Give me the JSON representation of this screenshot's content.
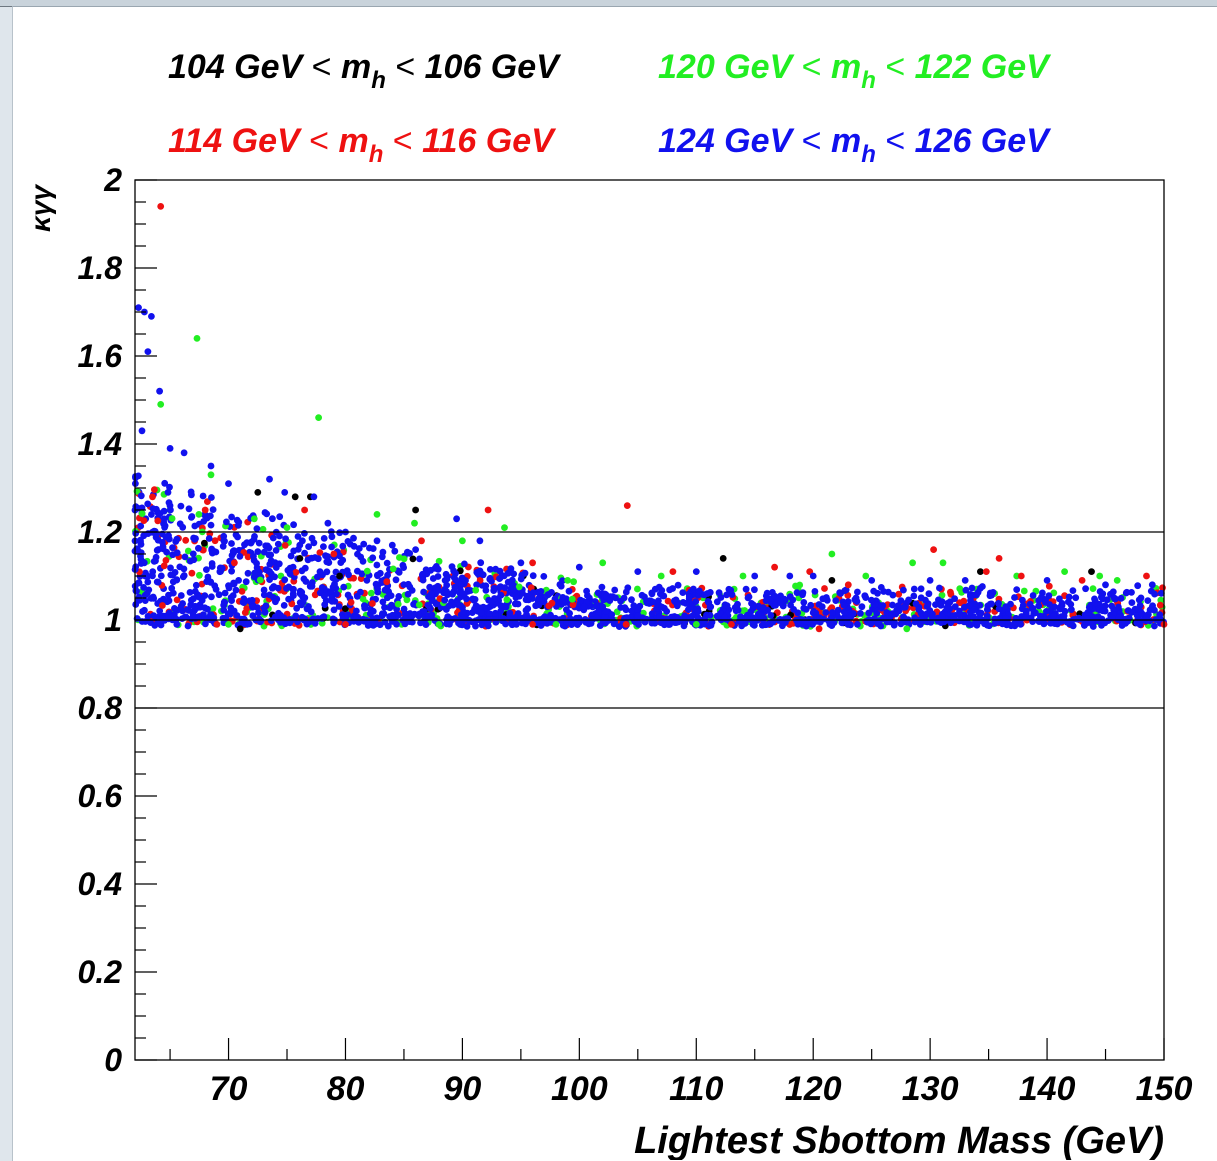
{
  "chart_data": {
    "type": "scatter",
    "xlabel": "Lightest Sbottom Mass (GeV)",
    "ylabel": "κγγ",
    "xlim": [
      62,
      150
    ],
    "ylim": [
      0,
      2
    ],
    "x_ticks": [
      "70",
      "80",
      "90",
      "100",
      "110",
      "120",
      "130",
      "140",
      "150"
    ],
    "y_ticks": [
      "0",
      "0.2",
      "0.4",
      "0.6",
      "0.8",
      "1",
      "1.2",
      "1.4",
      "1.6",
      "1.8",
      "2"
    ],
    "reference_lines": [
      0.8,
      1.0,
      1.2
    ],
    "grid": false,
    "legend_position": "top",
    "legend": [
      {
        "lo": "104 GeV",
        "hi": "106 GeV",
        "color": "#000000"
      },
      {
        "lo": "120 GeV",
        "hi": "122 GeV",
        "color": "#22ee22"
      },
      {
        "lo": "114 GeV",
        "hi": "116 GeV",
        "color": "#ee1111"
      },
      {
        "lo": "124 GeV",
        "hi": "126 GeV",
        "color": "#1111ee"
      }
    ],
    "legend_text": {
      "lt": "<",
      "m": "m",
      "h": "h"
    },
    "series": [
      {
        "name": "104 GeV < m_h < 106 GeV",
        "color": "#000000",
        "points": [
          [
            71,
            0.98
          ],
          [
            72.5,
            1.29
          ],
          [
            75.7,
            1.28
          ],
          [
            76.1,
            1.14
          ],
          [
            77,
            1.28
          ],
          [
            79.5,
            1.1
          ],
          [
            86,
            1.25
          ],
          [
            112.3,
            1.14
          ],
          [
            121.6,
            1.09
          ],
          [
            134.3,
            1.11
          ],
          [
            143.8,
            1.11
          ]
        ]
      },
      {
        "name": "120 GeV < m_h < 122 GeV",
        "color": "#22ee22",
        "points": [
          [
            64.2,
            1.49
          ],
          [
            67.3,
            1.64
          ],
          [
            68.5,
            1.33
          ],
          [
            72.2,
            1.23
          ],
          [
            75,
            1.21
          ],
          [
            77.7,
            1.46
          ],
          [
            82.7,
            1.24
          ],
          [
            85.9,
            1.22
          ],
          [
            90,
            1.18
          ],
          [
            93.6,
            1.21
          ],
          [
            99,
            1.09
          ],
          [
            102,
            1.13
          ],
          [
            107,
            1.1
          ],
          [
            114,
            1.1
          ],
          [
            121.6,
            1.15
          ],
          [
            124.5,
            1.1
          ],
          [
            128.5,
            1.13
          ],
          [
            131.1,
            1.13
          ],
          [
            137.4,
            1.1
          ],
          [
            141.5,
            1.11
          ],
          [
            144.5,
            1.1
          ],
          [
            146,
            1.09
          ],
          [
            98,
            0.99
          ],
          [
            110,
            0.99
          ],
          [
            128,
            0.98
          ],
          [
            70,
            0.99
          ],
          [
            88,
            0.99
          ]
        ]
      },
      {
        "name": "114 GeV < m_h < 116 GeV",
        "color": "#ee1111",
        "points": [
          [
            64.2,
            1.94
          ],
          [
            63.5,
            1.28
          ],
          [
            68,
            1.25
          ],
          [
            70.5,
            1.13
          ],
          [
            76.5,
            1.25
          ],
          [
            79,
            1.15
          ],
          [
            86.5,
            1.18
          ],
          [
            92.2,
            1.25
          ],
          [
            96,
            1.13
          ],
          [
            104.1,
            1.26
          ],
          [
            108,
            1.11
          ],
          [
            116.7,
            1.12
          ],
          [
            119.7,
            1.11
          ],
          [
            123,
            1.08
          ],
          [
            130.3,
            1.16
          ],
          [
            134.8,
            1.11
          ],
          [
            135.9,
            1.14
          ],
          [
            137.8,
            1.1
          ],
          [
            143,
            1.09
          ],
          [
            148.5,
            1.1
          ],
          [
            150,
            0.99
          ],
          [
            120.5,
            0.98
          ],
          [
            104,
            0.99
          ],
          [
            80,
            0.99
          ],
          [
            96,
            0.99
          ],
          [
            113,
            0.99
          ],
          [
            69,
            0.99
          ]
        ]
      },
      {
        "name": "124 GeV < m_h < 126 GeV",
        "color": "#1111ee",
        "points": [
          [
            62.3,
            1.71
          ],
          [
            62.8,
            1.7
          ],
          [
            63.4,
            1.69
          ],
          [
            62.6,
            1.43
          ],
          [
            63.1,
            1.61
          ],
          [
            64.1,
            1.52
          ],
          [
            65,
            1.39
          ],
          [
            66.2,
            1.38
          ],
          [
            68.5,
            1.35
          ],
          [
            70,
            1.31
          ],
          [
            73.5,
            1.32
          ],
          [
            74.8,
            1.29
          ],
          [
            77.3,
            1.28
          ],
          [
            78.5,
            1.22
          ],
          [
            80,
            1.2
          ],
          [
            82.7,
            1.18
          ],
          [
            84,
            1.17
          ],
          [
            86,
            1.16
          ],
          [
            89.5,
            1.23
          ],
          [
            91.5,
            1.18
          ],
          [
            95,
            1.13
          ],
          [
            100,
            1.12
          ],
          [
            105,
            1.11
          ],
          [
            110,
            1.11
          ],
          [
            115,
            1.1
          ],
          [
            118,
            1.1
          ],
          [
            120,
            1.1
          ],
          [
            125,
            1.09
          ],
          [
            130,
            1.09
          ],
          [
            133,
            1.09
          ],
          [
            140,
            1.09
          ],
          [
            145,
            1.08
          ],
          [
            149,
            1.08
          ]
        ]
      }
    ]
  }
}
